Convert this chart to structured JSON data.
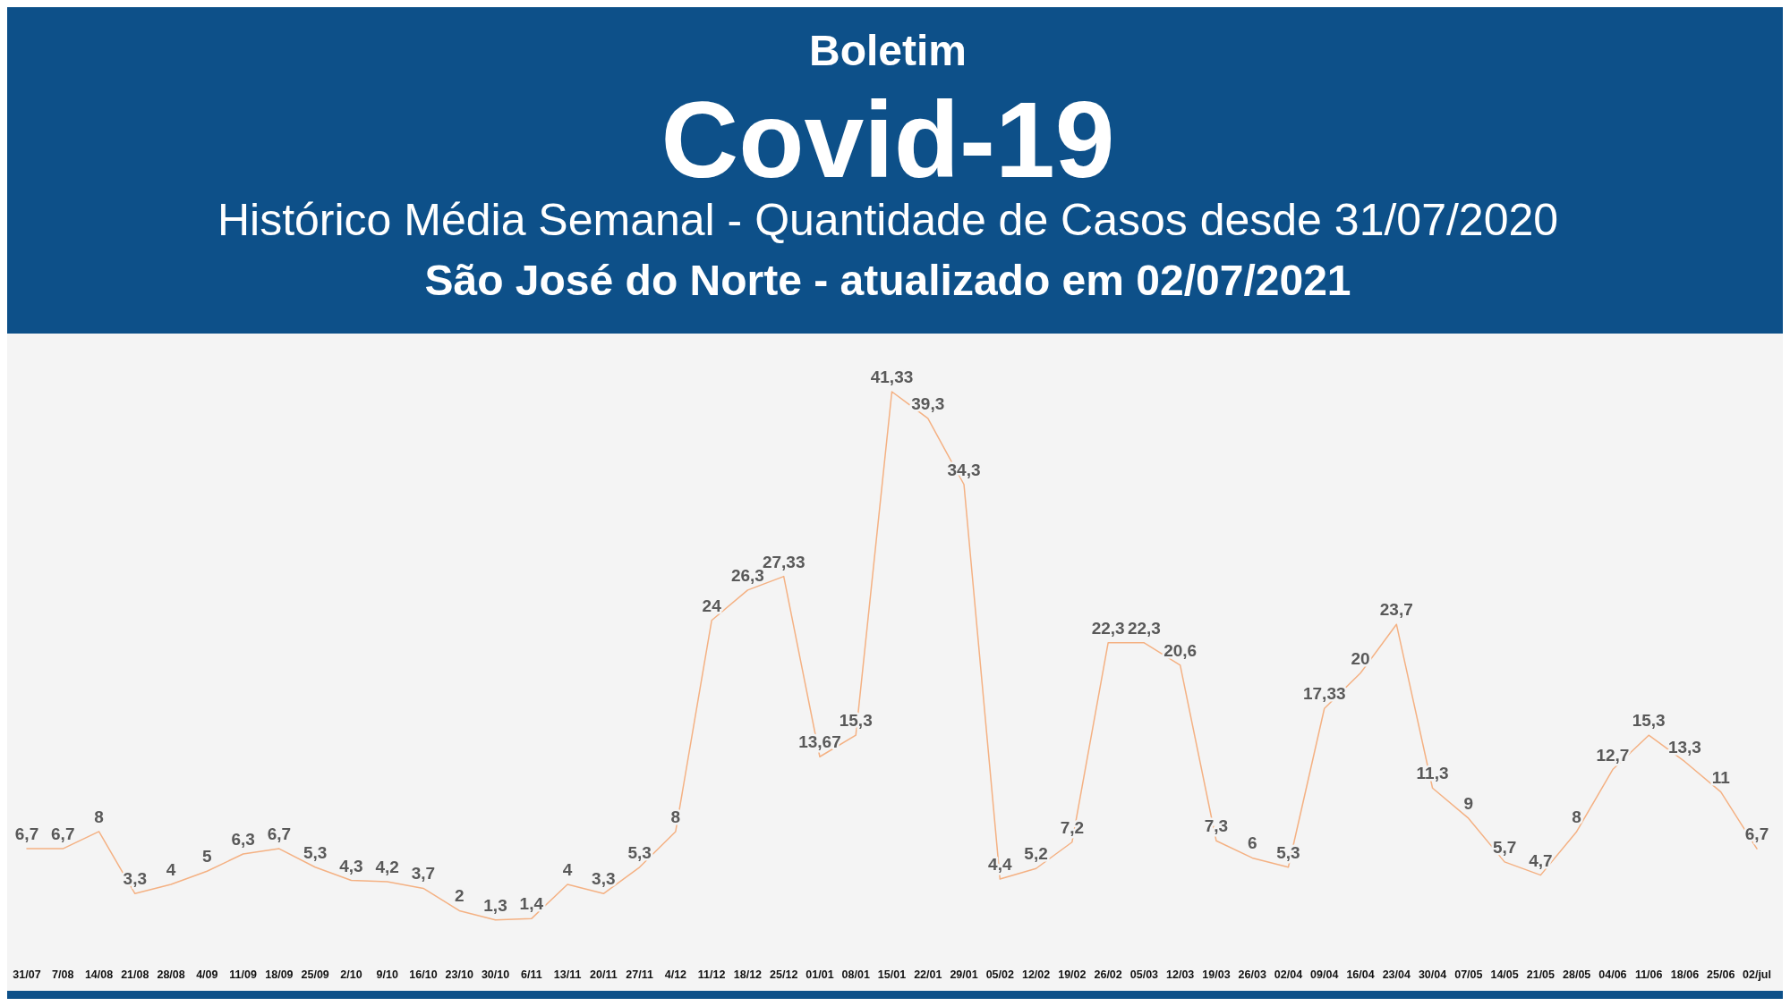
{
  "chart_data": {
    "type": "line",
    "title": "Boletim",
    "subtitle": "Covid-19",
    "annotations": [
      "Histórico Média Semanal - Quantidade de Casos desde 31/07/2020",
      "São José do Norte - atualizado em 02/07/2021"
    ],
    "categories": [
      "31/07",
      "7/08",
      "14/08",
      "21/08",
      "28/08",
      "4/09",
      "11/09",
      "18/09",
      "25/09",
      "2/10",
      "9/10",
      "16/10",
      "23/10",
      "30/10",
      "6/11",
      "13/11",
      "20/11",
      "27/11",
      "4/12",
      "11/12",
      "18/12",
      "25/12",
      "01/01",
      "08/01",
      "15/01",
      "22/01",
      "29/01",
      "05/02",
      "12/02",
      "19/02",
      "26/02",
      "05/03",
      "12/03",
      "19/03",
      "26/03",
      "02/04",
      "09/04",
      "16/04",
      "23/04",
      "30/04",
      "07/05",
      "14/05",
      "21/05",
      "28/05",
      "04/06",
      "11/06",
      "18/06",
      "25/06",
      "02/jul"
    ],
    "series": [
      {
        "color": "#f4b183",
        "values": [
          6.7,
          6.7,
          8,
          3.3,
          4,
          5,
          6.3,
          6.7,
          5.3,
          4.3,
          4.2,
          3.7,
          2,
          1.3,
          1.4,
          4,
          3.3,
          5.3,
          8,
          24,
          26.3,
          27.33,
          13.67,
          15.3,
          41.33,
          39.3,
          34.3,
          4.4,
          5.2,
          7.2,
          22.3,
          22.3,
          20.6,
          7.3,
          6,
          5.3,
          17.33,
          20,
          23.7,
          11.3,
          9,
          5.7,
          4.7,
          8,
          12.7,
          15.3,
          13.3,
          11,
          6.7
        ],
        "value_labels": [
          "6,7",
          "6,7",
          "8",
          "3,3",
          "4",
          "5",
          "6,3",
          "6,7",
          "5,3",
          "4,3",
          "4,2",
          "3,7",
          "2",
          "1,3",
          "1,4",
          "4",
          "3,3",
          "5,3",
          "8",
          "24",
          "26,3",
          "27,33",
          "13,67",
          "15,3",
          "41,33",
          "39,3",
          "34,3",
          "4,4",
          "5,2",
          "7,2",
          "22,3",
          "22,3",
          "20,6",
          "7,3",
          "6",
          "5,3",
          "17,33",
          "20",
          "23,7",
          "11,3",
          "9",
          "5,7",
          "4,7",
          "8",
          "12,7",
          "15,3",
          "13,3",
          "11",
          "6,7"
        ]
      }
    ],
    "tick_labels": "x",
    "grid": false,
    "marker": "none",
    "line_style": "solid"
  }
}
